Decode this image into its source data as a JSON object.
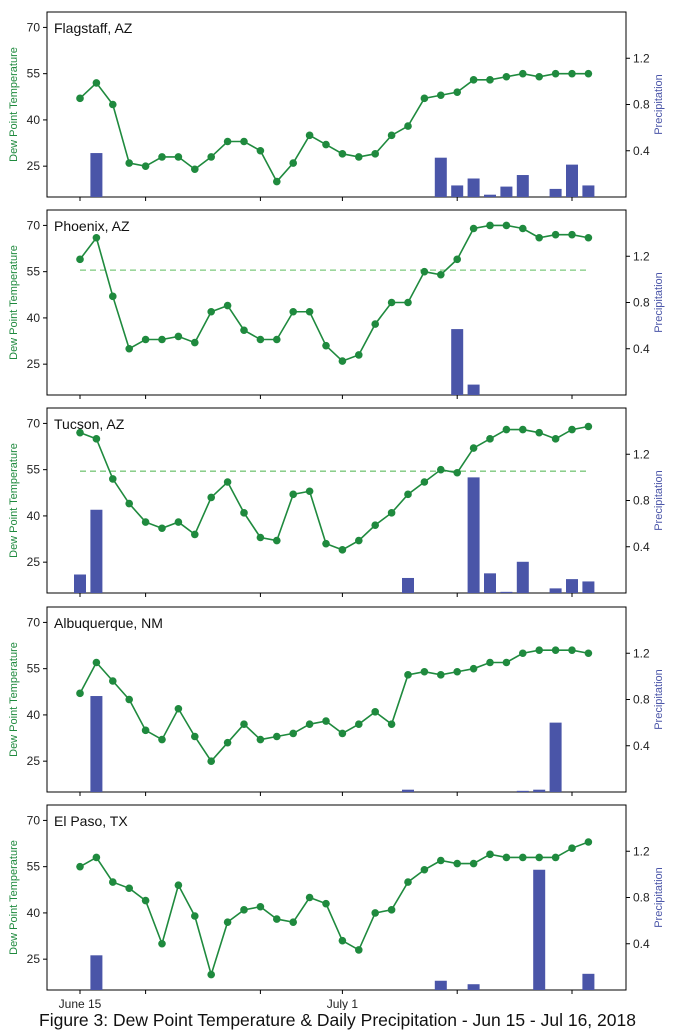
{
  "figure": {
    "caption": "Figure 3: Dew Point Temperature & Daily Precipitation - Jun 15 - Jul 16, 2018",
    "left_axis_label": "Dew Point Temperature",
    "right_axis_label": "Precipitation",
    "x_tick_labels": [
      "June 15",
      "July 1"
    ],
    "colors": {
      "dewpoint": "#1f8a3e",
      "precip": "#4a55a8",
      "threshold": "#7cc87c"
    }
  },
  "chart_data": [
    {
      "type": "bar+line",
      "title": "Flagstaff, AZ",
      "x": [
        "Jun 15",
        "Jun 16",
        "Jun 17",
        "Jun 18",
        "Jun 19",
        "Jun 20",
        "Jun 21",
        "Jun 22",
        "Jun 23",
        "Jun 24",
        "Jun 25",
        "Jun 26",
        "Jun 27",
        "Jun 28",
        "Jun 29",
        "Jun 30",
        "Jul 1",
        "Jul 2",
        "Jul 3",
        "Jul 4",
        "Jul 5",
        "Jul 6",
        "Jul 7",
        "Jul 8",
        "Jul 9",
        "Jul 10",
        "Jul 11",
        "Jul 12",
        "Jul 13",
        "Jul 14",
        "Jul 15",
        "Jul 16"
      ],
      "dewpoint": [
        47,
        52,
        45,
        26,
        25,
        28,
        28,
        24,
        28,
        33,
        33,
        30,
        20,
        26,
        35,
        32,
        29,
        28,
        29,
        35,
        38,
        47,
        48,
        49,
        53,
        53,
        54,
        55,
        54,
        55,
        55,
        55
      ],
      "precip": [
        null,
        0.38,
        null,
        null,
        null,
        null,
        null,
        null,
        null,
        null,
        null,
        null,
        null,
        null,
        null,
        null,
        null,
        null,
        null,
        null,
        null,
        null,
        0.34,
        0.1,
        0.16,
        0.02,
        0.09,
        0.19,
        null,
        0.07,
        0.28,
        0.1
      ],
      "threshold": null,
      "ylim": [
        15,
        75
      ],
      "y_ticks": [
        25,
        40,
        55,
        70
      ],
      "y2lim": [
        0,
        1.6
      ],
      "y2_ticks": [
        0.4,
        0.8,
        1.2
      ]
    },
    {
      "type": "bar+line",
      "title": "Phoenix, AZ",
      "x": [
        "Jun 15",
        "Jun 16",
        "Jun 17",
        "Jun 18",
        "Jun 19",
        "Jun 20",
        "Jun 21",
        "Jun 22",
        "Jun 23",
        "Jun 24",
        "Jun 25",
        "Jun 26",
        "Jun 27",
        "Jun 28",
        "Jun 29",
        "Jun 30",
        "Jul 1",
        "Jul 2",
        "Jul 3",
        "Jul 4",
        "Jul 5",
        "Jul 6",
        "Jul 7",
        "Jul 8",
        "Jul 9",
        "Jul 10",
        "Jul 11",
        "Jul 12",
        "Jul 13",
        "Jul 14",
        "Jul 15",
        "Jul 16"
      ],
      "dewpoint": [
        59,
        66,
        47,
        30,
        33,
        33,
        34,
        32,
        42,
        44,
        36,
        33,
        33,
        42,
        42,
        31,
        26,
        28,
        38,
        45,
        45,
        55,
        54,
        59,
        69,
        70,
        70,
        69,
        66,
        67,
        67,
        66
      ],
      "precip": [
        null,
        null,
        null,
        null,
        null,
        null,
        null,
        null,
        null,
        null,
        null,
        null,
        null,
        null,
        null,
        null,
        null,
        null,
        null,
        null,
        null,
        null,
        null,
        0.57,
        0.09,
        null,
        null,
        null,
        null,
        null,
        null,
        null
      ],
      "threshold": 55.5,
      "ylim": [
        15,
        75
      ],
      "y_ticks": [
        25,
        40,
        55,
        70
      ],
      "y2lim": [
        0,
        1.6
      ],
      "y2_ticks": [
        0.4,
        0.8,
        1.2
      ]
    },
    {
      "type": "bar+line",
      "title": "Tucson, AZ",
      "x": [
        "Jun 15",
        "Jun 16",
        "Jun 17",
        "Jun 18",
        "Jun 19",
        "Jun 20",
        "Jun 21",
        "Jun 22",
        "Jun 23",
        "Jun 24",
        "Jun 25",
        "Jun 26",
        "Jun 27",
        "Jun 28",
        "Jun 29",
        "Jun 30",
        "Jul 1",
        "Jul 2",
        "Jul 3",
        "Jul 4",
        "Jul 5",
        "Jul 6",
        "Jul 7",
        "Jul 8",
        "Jul 9",
        "Jul 10",
        "Jul 11",
        "Jul 12",
        "Jul 13",
        "Jul 14",
        "Jul 15",
        "Jul 16"
      ],
      "dewpoint": [
        67,
        65,
        52,
        44,
        38,
        36,
        38,
        34,
        46,
        51,
        41,
        33,
        32,
        47,
        48,
        31,
        29,
        32,
        37,
        41,
        47,
        51,
        55,
        54,
        62,
        65,
        68,
        68,
        67,
        65,
        68,
        69
      ],
      "precip": [
        0.16,
        0.72,
        null,
        null,
        null,
        null,
        null,
        null,
        null,
        null,
        null,
        null,
        null,
        null,
        null,
        null,
        null,
        null,
        null,
        null,
        0.13,
        null,
        null,
        null,
        1.0,
        0.17,
        0.01,
        0.27,
        null,
        0.04,
        0.12,
        0.1
      ],
      "threshold": 54.5,
      "ylim": [
        15,
        75
      ],
      "y_ticks": [
        25,
        40,
        55,
        70
      ],
      "y2lim": [
        0,
        1.6
      ],
      "y2_ticks": [
        0.4,
        0.8,
        1.2
      ]
    },
    {
      "type": "bar+line",
      "title": "Albuquerque, NM",
      "x": [
        "Jun 15",
        "Jun 16",
        "Jun 17",
        "Jun 18",
        "Jun 19",
        "Jun 20",
        "Jun 21",
        "Jun 22",
        "Jun 23",
        "Jun 24",
        "Jun 25",
        "Jun 26",
        "Jun 27",
        "Jun 28",
        "Jun 29",
        "Jun 30",
        "Jul 1",
        "Jul 2",
        "Jul 3",
        "Jul 4",
        "Jul 5",
        "Jul 6",
        "Jul 7",
        "Jul 8",
        "Jul 9",
        "Jul 10",
        "Jul 11",
        "Jul 12",
        "Jul 13",
        "Jul 14",
        "Jul 15",
        "Jul 16"
      ],
      "dewpoint": [
        47,
        57,
        51,
        45,
        35,
        32,
        42,
        33,
        25,
        31,
        37,
        32,
        33,
        34,
        37,
        38,
        34,
        37,
        41,
        37,
        53,
        54,
        53,
        54,
        55,
        57,
        57,
        60,
        61,
        61,
        61,
        60
      ],
      "precip": [
        null,
        0.83,
        null,
        null,
        null,
        null,
        null,
        null,
        null,
        null,
        null,
        null,
        null,
        null,
        null,
        null,
        null,
        null,
        null,
        null,
        0.02,
        null,
        null,
        null,
        null,
        null,
        null,
        0.01,
        0.02,
        0.6,
        null,
        null
      ],
      "threshold": null,
      "ylim": [
        15,
        75
      ],
      "y_ticks": [
        25,
        40,
        55,
        70
      ],
      "y2lim": [
        0,
        1.6
      ],
      "y2_ticks": [
        0.4,
        0.8,
        1.2
      ]
    },
    {
      "type": "bar+line",
      "title": "El Paso, TX",
      "x": [
        "Jun 15",
        "Jun 16",
        "Jun 17",
        "Jun 18",
        "Jun 19",
        "Jun 20",
        "Jun 21",
        "Jun 22",
        "Jun 23",
        "Jun 24",
        "Jun 25",
        "Jun 26",
        "Jun 27",
        "Jun 28",
        "Jun 29",
        "Jun 30",
        "Jul 1",
        "Jul 2",
        "Jul 3",
        "Jul 4",
        "Jul 5",
        "Jul 6",
        "Jul 7",
        "Jul 8",
        "Jul 9",
        "Jul 10",
        "Jul 11",
        "Jul 12",
        "Jul 13",
        "Jul 14",
        "Jul 15",
        "Jul 16"
      ],
      "dewpoint": [
        55,
        58,
        50,
        48,
        44,
        30,
        49,
        39,
        20,
        37,
        41,
        42,
        38,
        37,
        45,
        43,
        31,
        28,
        40,
        41,
        50,
        54,
        57,
        56,
        56,
        59,
        58,
        58,
        58,
        58,
        61,
        63
      ],
      "precip": [
        null,
        0.3,
        null,
        null,
        null,
        null,
        null,
        null,
        null,
        null,
        null,
        null,
        null,
        null,
        null,
        null,
        null,
        null,
        null,
        null,
        null,
        null,
        0.08,
        null,
        0.05,
        null,
        null,
        null,
        1.04,
        null,
        null,
        0.14
      ],
      "threshold": null,
      "ylim": [
        15,
        75
      ],
      "y_ticks": [
        25,
        40,
        55,
        70
      ],
      "y2lim": [
        0,
        1.6
      ],
      "y2_ticks": [
        0.4,
        0.8,
        1.2
      ]
    }
  ]
}
